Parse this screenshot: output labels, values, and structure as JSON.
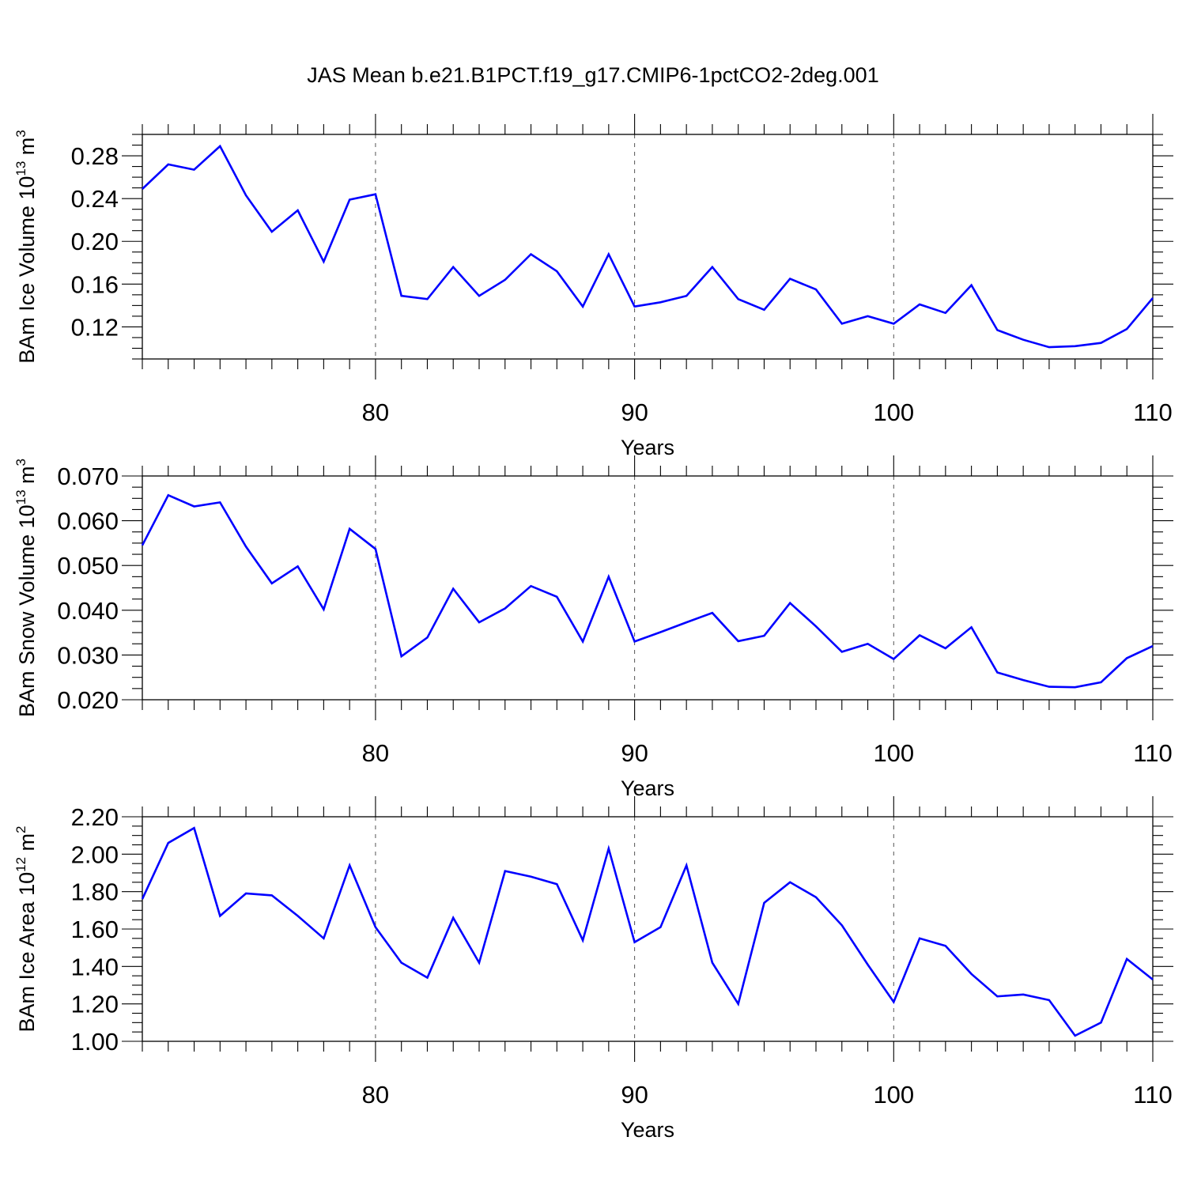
{
  "title": "JAS Mean b.e21.B1PCT.f19_g17.CMIP6-1pctCO2-2deg.001",
  "colors": {
    "line": "#0000ff",
    "axis": "#000000",
    "grid": "#555555"
  },
  "chart_data": [
    {
      "type": "line",
      "ylabel": {
        "text": "BAm Ice Volume 10",
        "sup": "13",
        "unit": " m",
        "unit_sup": "3"
      },
      "xlabel": "Years",
      "xlim": [
        71,
        110
      ],
      "ylim": [
        0.09,
        0.3
      ],
      "yticks": [
        0.12,
        0.16,
        0.2,
        0.24,
        0.28
      ],
      "ytick_labels": [
        "0.12",
        "0.16",
        "0.20",
        "0.24",
        "0.28"
      ],
      "xticks": [
        80,
        90,
        100,
        110
      ],
      "xtick_labels": [
        "80",
        "90",
        "100",
        "110"
      ],
      "grid_x": [
        80,
        90,
        100
      ],
      "x": [
        71,
        72,
        73,
        74,
        75,
        76,
        77,
        78,
        79,
        80,
        81,
        82,
        83,
        84,
        85,
        86,
        87,
        88,
        89,
        90,
        91,
        92,
        93,
        94,
        95,
        96,
        97,
        98,
        99,
        100,
        101,
        102,
        103,
        104,
        105,
        106,
        107,
        108,
        109,
        110
      ],
      "values": [
        0.249,
        0.272,
        0.267,
        0.289,
        0.243,
        0.209,
        0.229,
        0.181,
        0.239,
        0.244,
        0.149,
        0.146,
        0.176,
        0.149,
        0.164,
        0.188,
        0.172,
        0.139,
        0.188,
        0.139,
        0.143,
        0.149,
        0.176,
        0.146,
        0.136,
        0.165,
        0.155,
        0.123,
        0.13,
        0.123,
        0.141,
        0.133,
        0.159,
        0.117,
        0.108,
        0.101,
        0.102,
        0.105,
        0.118,
        0.147
      ]
    },
    {
      "type": "line",
      "ylabel": {
        "text": "BAm Snow Volume 10",
        "sup": "13",
        "unit": " m",
        "unit_sup": "3"
      },
      "xlabel": "Years",
      "xlim": [
        71,
        110
      ],
      "ylim": [
        0.02,
        0.07
      ],
      "yticks": [
        0.02,
        0.03,
        0.04,
        0.05,
        0.06,
        0.07
      ],
      "ytick_labels": [
        "0.020",
        "0.030",
        "0.040",
        "0.050",
        "0.060",
        "0.070"
      ],
      "xticks": [
        80,
        90,
        100,
        110
      ],
      "xtick_labels": [
        "80",
        "90",
        "100",
        "110"
      ],
      "grid_x": [
        80,
        90,
        100
      ],
      "x": [
        71,
        72,
        73,
        74,
        75,
        76,
        77,
        78,
        79,
        80,
        81,
        82,
        83,
        84,
        85,
        86,
        87,
        88,
        89,
        90,
        91,
        92,
        93,
        94,
        95,
        96,
        97,
        98,
        99,
        100,
        101,
        102,
        103,
        104,
        105,
        106,
        107,
        108,
        109,
        110
      ],
      "values": [
        0.0545,
        0.0657,
        0.0632,
        0.0641,
        0.0542,
        0.046,
        0.0498,
        0.0402,
        0.0582,
        0.0537,
        0.0297,
        0.0339,
        0.0448,
        0.0373,
        0.0404,
        0.0454,
        0.043,
        0.033,
        0.0475,
        0.033,
        0.0351,
        0.0373,
        0.0394,
        0.0331,
        0.0343,
        0.0416,
        0.0364,
        0.0307,
        0.0325,
        0.0291,
        0.0344,
        0.0315,
        0.0362,
        0.0261,
        0.0244,
        0.0229,
        0.0228,
        0.0239,
        0.0293,
        0.032
      ]
    },
    {
      "type": "line",
      "ylabel": {
        "text": "BAm Ice Area 10",
        "sup": "12",
        "unit": " m",
        "unit_sup": "2"
      },
      "xlabel": "Years",
      "xlim": [
        71,
        110
      ],
      "ylim": [
        1.0,
        2.2
      ],
      "yticks": [
        1.0,
        1.2,
        1.4,
        1.6,
        1.8,
        2.0,
        2.2
      ],
      "ytick_labels": [
        "1.00",
        "1.20",
        "1.40",
        "1.60",
        "1.80",
        "2.00",
        "2.20"
      ],
      "xticks": [
        80,
        90,
        100,
        110
      ],
      "xtick_labels": [
        "80",
        "90",
        "100",
        "110"
      ],
      "grid_x": [
        80,
        90,
        100
      ],
      "x": [
        71,
        72,
        73,
        74,
        75,
        76,
        77,
        78,
        79,
        80,
        81,
        82,
        83,
        84,
        85,
        86,
        87,
        88,
        89,
        90,
        91,
        92,
        93,
        94,
        95,
        96,
        97,
        98,
        99,
        100,
        101,
        102,
        103,
        104,
        105,
        106,
        107,
        108,
        109,
        110
      ],
      "values": [
        1.76,
        2.06,
        2.14,
        1.67,
        1.79,
        1.78,
        1.67,
        1.55,
        1.94,
        1.61,
        1.42,
        1.34,
        1.66,
        1.42,
        1.91,
        1.88,
        1.84,
        1.54,
        2.03,
        1.53,
        1.61,
        1.94,
        1.42,
        1.2,
        1.74,
        1.85,
        1.77,
        1.62,
        1.41,
        1.21,
        1.55,
        1.51,
        1.36,
        1.24,
        1.25,
        1.22,
        1.03,
        1.1,
        1.44,
        1.33
      ]
    }
  ]
}
